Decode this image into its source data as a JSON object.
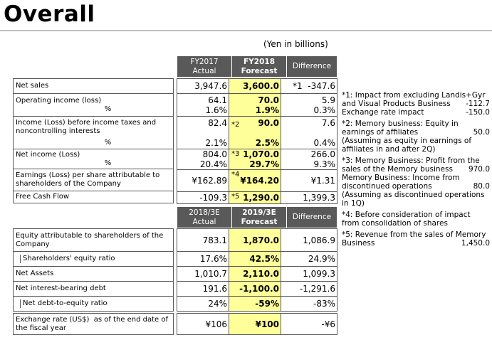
{
  "title": "Overall",
  "unit": "(Yen in billions)",
  "s1": {
    "h": [
      "FY2017",
      "Actual",
      "FY2018",
      "Forecast",
      "Difference"
    ],
    "rows": [
      {
        "label": "Net sales",
        "a": "3,947.6",
        "f": "3,600.0",
        "d": "*1  -347.6",
        "note": ""
      },
      {
        "label": "Operating income (loss)",
        "pl": "%",
        "a": "64.1",
        "f": "70.0",
        "d": "5.9",
        "pa": "1.6%",
        "pf": "1.9%",
        "pd": "0.3%"
      },
      {
        "label": "Income (Loss) before income taxes and noncontrolling interests",
        "pl": "%",
        "a": "82.4",
        "f": "90.0",
        "d": "7.6",
        "note": "*2",
        "pa": "2.1%",
        "pf": "2.5%",
        "pd": "0.4%"
      },
      {
        "label": "Net income (Loss)",
        "pl": "%",
        "a": "804.0",
        "f": "1,070.0",
        "d": "266.0",
        "note": "*3",
        "pa": "20.4%",
        "pf": "29.7%",
        "pd": "9.3%"
      },
      {
        "label": "Earnings (Loss) per share attributable to shareholders of the Company",
        "a": "¥162.89",
        "f": "¥164.20",
        "d": "¥1.31",
        "note": "*4"
      },
      {
        "label": "Free Cash Flow",
        "a": "-109.3",
        "f": "1,290.0",
        "d": "1,399.3",
        "note": "*5"
      }
    ]
  },
  "s2": {
    "h": [
      "2018/3E",
      "Actual",
      "2019/3E",
      "Forecast",
      "Difference"
    ],
    "rows": [
      {
        "label": "Equity attributable to shareholders of the Company",
        "a": "783.1",
        "f": "1,870.0",
        "d": "1,086.9"
      },
      {
        "label": "Shareholders' equity ratio",
        "a": "17.6%",
        "f": "42.5%",
        "d": "24.9%"
      },
      {
        "label": "Net Assets",
        "a": "1,010.7",
        "f": "2,110.0",
        "d": "1,099.3"
      },
      {
        "label": "Net interest-bearing debt",
        "a": "191.6",
        "f": "-1,100.0",
        "d": "-1,291.6"
      },
      {
        "label": "Net debt-to-equity ratio",
        "a": "24%",
        "f": "-59%",
        "d": "-83%"
      },
      {
        "label": "Exchange rate (US$)  as of the end date of the fiscal year",
        "a": "¥106",
        "f": "¥100",
        "d": "-¥6"
      }
    ]
  },
  "notes": {
    "n1": "*1: Impact from excluding Landis+Gyr and Visual Products Business",
    "n1v": "-112.7",
    "n1b": "Exchange rate impact",
    "n1bv": "-150.0",
    "n2": "*2: Memory business: Equity in earnings of affiliates",
    "n2v": "50.0",
    "n2c": "(Assuming as equity in earnings of affiliates in and after 2Q)",
    "n3": "*3: Memory Business: Profit from the sales of the Memory business",
    "n3v": "970.0",
    "n3b": "Memory Business: Income from discontinued operations",
    "n3bv": "80.0",
    "n3c": "(Assuming as discontinued operations in 1Q)",
    "n4": "*4: Before consideration of impact from consolidation of shares",
    "n5": "*5: Revenue from the sales of Memory Business",
    "n5v": "1,450.0"
  }
}
